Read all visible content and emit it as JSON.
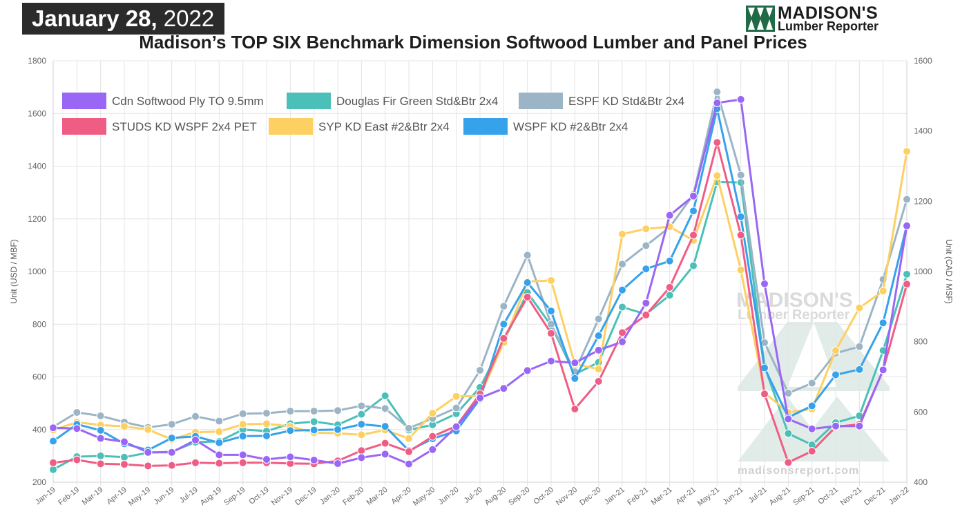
{
  "banner": {
    "date_bold": "January 28,",
    "year": "2022"
  },
  "logo": {
    "name": "MADISON'S",
    "sub": "Lumber Reporter"
  },
  "watermark": {
    "name": "MADISON'S",
    "sub": "Lumber Reporter",
    "url": "madisonsreport.com"
  },
  "chart_data": {
    "type": "line",
    "title": "Madison’s TOP SIX Benchmark Dimension Softwood Lumber and Panel Prices",
    "ylabel": "Unit (USD / MBF)",
    "y2label": "Unit (CAD / MSF)",
    "ylim": [
      200,
      1800
    ],
    "y2lim": [
      400,
      1600
    ],
    "yticks": [
      "200",
      "400",
      "600",
      "800",
      "1000",
      "1200",
      "1400",
      "1600",
      "1800"
    ],
    "y2ticks": [
      "400",
      "600",
      "800",
      "1000",
      "1200",
      "1400",
      "1600"
    ],
    "grid": true,
    "legend_position": "top-left",
    "categories": [
      "Jan-19",
      "Feb-19",
      "Mar-19",
      "Apr-19",
      "May-19",
      "Jun-19",
      "Jul-19",
      "Aug-19",
      "Sep-19",
      "Oct-19",
      "Nov-19",
      "Dec-19",
      "Jan-20",
      "Feb-20",
      "Mar-20",
      "Apr-20",
      "May-20",
      "Jun-20",
      "Jul-20",
      "Aug-20",
      "Sep-20",
      "Oct-20",
      "Nov-20",
      "Dec-20",
      "Jan-21",
      "Feb-21",
      "Mar-21",
      "Apr-21",
      "May-21",
      "Jun-21",
      "Jul-21",
      "Aug-21",
      "Sep-21",
      "Oct-21",
      "Nov-21",
      "Dec-21",
      "Jan-22"
    ],
    "series": [
      {
        "name": "Douglas Fir Green Std&Btr 2x4",
        "color": "#4bc0b8",
        "axis": "left",
        "values": [
          248,
          297,
          300,
          295,
          312,
          316,
          352,
          355,
          400,
          394,
          422,
          430,
          418,
          458,
          528,
          398,
          418,
          460,
          560,
          735,
          920,
          795,
          610,
          655,
          865,
          838,
          910,
          1022,
          1340,
          1338,
          640,
          385,
          342,
          426,
          452,
          700,
          990
        ]
      },
      {
        "name": "ESPF KD Std&Btr 2x4",
        "color": "#9bb5c6",
        "axis": "left",
        "values": [
          410,
          465,
          452,
          428,
          408,
          420,
          450,
          432,
          460,
          462,
          470,
          470,
          472,
          490,
          480,
          405,
          442,
          482,
          625,
          868,
          1062,
          800,
          620,
          820,
          1028,
          1098,
          1168,
          1292,
          1682,
          1366,
          730,
          538,
          576,
          690,
          715,
          970,
          1274
        ]
      },
      {
        "name": "SYP KD East #2&Btr 2x4",
        "color": "#fdd061",
        "axis": "left",
        "values": [
          398,
          428,
          417,
          412,
          400,
          363,
          390,
          392,
          420,
          422,
          412,
          388,
          386,
          380,
          398,
          366,
          462,
          526,
          528,
          730,
          962,
          966,
          648,
          630,
          1142,
          1162,
          1170,
          1118,
          1364,
          1006,
          540,
          465,
          478,
          700,
          862,
          926,
          1456
        ]
      },
      {
        "name": "WSPF KD #2&Btr 2x4",
        "color": "#36a2eb",
        "axis": "left",
        "values": [
          356,
          420,
          397,
          346,
          322,
          368,
          374,
          350,
          375,
          376,
          396,
          398,
          400,
          420,
          412,
          320,
          365,
          395,
          516,
          800,
          958,
          850,
          594,
          756,
          930,
          1010,
          1040,
          1230,
          1618,
          1208,
          634,
          446,
          490,
          608,
          628,
          805,
          1176
        ]
      },
      {
        "name": "STUDS KD WSPF 2x4 PET",
        "color": "#f05d84",
        "axis": "left",
        "values": [
          274,
          285,
          270,
          268,
          262,
          264,
          274,
          272,
          274,
          274,
          271,
          270,
          281,
          320,
          348,
          316,
          374,
          413,
          535,
          746,
          903,
          765,
          478,
          583,
          768,
          835,
          940,
          1138,
          1490,
          1138,
          535,
          275,
          318,
          410,
          420,
          625,
          952
        ]
      },
      {
        "name": "Cdn Softwood Ply TO 9.5mm",
        "color": "#9966f5",
        "axis": "right",
        "values": [
          555,
          553,
          525,
          515,
          485,
          485,
          520,
          478,
          478,
          465,
          472,
          463,
          453,
          470,
          480,
          452,
          493,
          558,
          640,
          667,
          718,
          745,
          740,
          776,
          800,
          910,
          1160,
          1215,
          1480,
          1490,
          965,
          580,
          552,
          560,
          560,
          720,
          1130
        ]
      }
    ]
  }
}
